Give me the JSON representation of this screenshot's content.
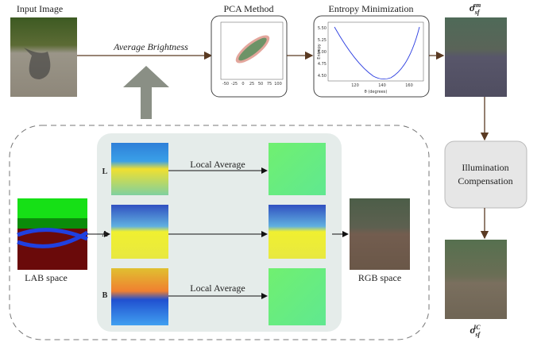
{
  "header": {
    "input_image": "Input Image",
    "average_brightness": "Average Brightness",
    "pca_method": "PCA Method",
    "entropy_minimization": "Entropy Minimization",
    "sigma_em": {
      "symbol": "σ",
      "sub": "sf",
      "sup": "em"
    }
  },
  "pca_plot": {
    "x_ticks": [
      "-50",
      "-25",
      "0",
      "25",
      "50",
      "75",
      "100"
    ]
  },
  "entropy_plot": {
    "y_label": "Entropy",
    "x_label": "θ (degrees)",
    "y_ticks": [
      "5.50",
      "5.25",
      "5.00",
      "4.75",
      "4.50"
    ],
    "x_ticks": [
      "120",
      "140",
      "160"
    ]
  },
  "compensation": {
    "lines": [
      "Illumination",
      "Compensation"
    ],
    "sigma_ic": {
      "symbol": "σ",
      "sub": "sf",
      "sup": "IC"
    }
  },
  "lab_panel": {
    "lab_space": "LAB space",
    "channels": [
      "L",
      "A",
      "B"
    ],
    "local_average": [
      "Local Average",
      "Local Average"
    ],
    "rgb_space": "RGB  space"
  }
}
